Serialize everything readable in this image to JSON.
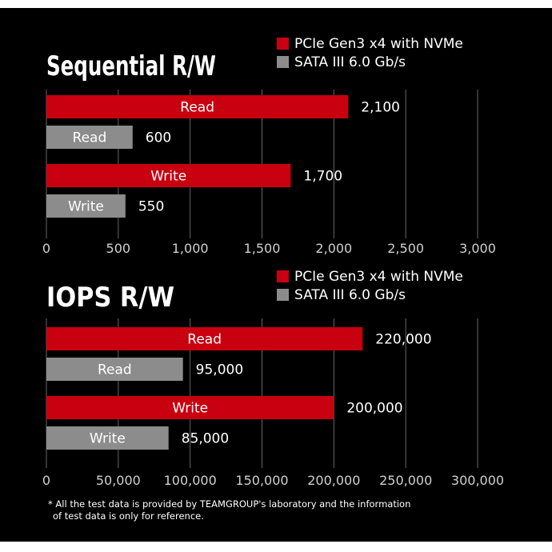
{
  "footnote": {
    "line1": "* All the test data is provided by TEAMGROUP's laboratory and the information",
    "line2": "of test data is only for reference."
  },
  "colors": {
    "nvme": "#c8000f",
    "sata": "#8c8c8c",
    "grid": "#666666",
    "background": "#000000"
  },
  "chart_data": [
    {
      "type": "bar",
      "orientation": "horizontal",
      "title": "Sequential R/W",
      "legend": [
        "PCIe Gen3 x4 with NVMe",
        "SATA III 6.0 Gb/s"
      ],
      "legend_position": "top-right",
      "xlim": [
        0,
        3000
      ],
      "xticks": [
        0,
        500,
        1000,
        1500,
        2000,
        2500,
        3000
      ],
      "xtick_labels": [
        "0",
        "500",
        "1,000",
        "1,500",
        "2,000",
        "2,500",
        "3,000"
      ],
      "grid": true,
      "bars": [
        {
          "label": "Read",
          "series": "PCIe Gen3 x4 with NVMe",
          "value": 2100,
          "value_label": "2,100"
        },
        {
          "label": "Read",
          "series": "SATA III 6.0 Gb/s",
          "value": 600,
          "value_label": "600"
        },
        {
          "label": "Write",
          "series": "PCIe Gen3 x4 with NVMe",
          "value": 1700,
          "value_label": "1,700"
        },
        {
          "label": "Write",
          "series": "SATA III 6.0 Gb/s",
          "value": 550,
          "value_label": "550"
        }
      ]
    },
    {
      "type": "bar",
      "orientation": "horizontal",
      "title": "IOPS R/W",
      "legend": [
        "PCIe Gen3 x4 with NVMe",
        "SATA III 6.0 Gb/s"
      ],
      "legend_position": "top-right",
      "xlim": [
        0,
        300000
      ],
      "xticks": [
        0,
        50000,
        100000,
        150000,
        200000,
        250000,
        300000
      ],
      "xtick_labels": [
        "0",
        "50,000",
        "100,000",
        "150,000",
        "200,000",
        "250,000",
        "300,000"
      ],
      "grid": true,
      "bars": [
        {
          "label": "Read",
          "series": "PCIe Gen3 x4 with NVMe",
          "value": 220000,
          "value_label": "220,000"
        },
        {
          "label": "Read",
          "series": "SATA III 6.0 Gb/s",
          "value": 95000,
          "value_label": "95,000"
        },
        {
          "label": "Write",
          "series": "PCIe Gen3 x4 with NVMe",
          "value": 200000,
          "value_label": "200,000"
        },
        {
          "label": "Write",
          "series": "SATA III 6.0 Gb/s",
          "value": 85000,
          "value_label": "85,000"
        }
      ]
    }
  ]
}
